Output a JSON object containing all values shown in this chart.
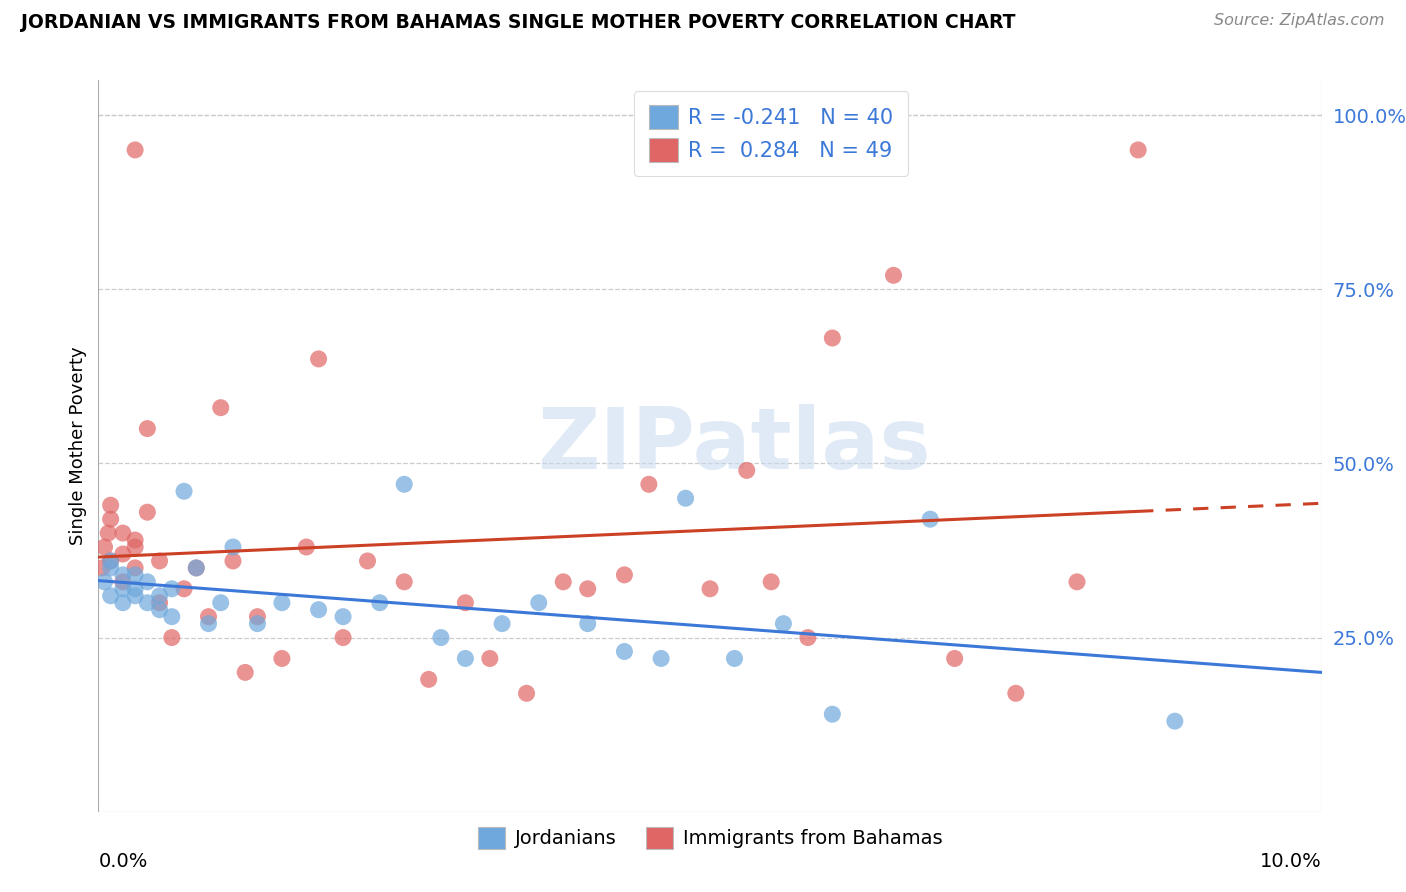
{
  "title": "JORDANIAN VS IMMIGRANTS FROM BAHAMAS SINGLE MOTHER POVERTY CORRELATION CHART",
  "source": "Source: ZipAtlas.com",
  "ylabel": "Single Mother Poverty",
  "legend_label1": "Jordanians",
  "legend_label2": "Immigrants from Bahamas",
  "r1": -0.241,
  "n1": 40,
  "r2": 0.284,
  "n2": 49,
  "color_blue": "#6fa8dc",
  "color_pink": "#e06666",
  "color_line_blue": "#3c78d8",
  "color_line_pink": "#cc4125",
  "watermark": "ZIPatlas",
  "xlim": [
    0.0,
    0.1
  ],
  "ylim": [
    0.0,
    1.05
  ],
  "yticks": [
    0.25,
    0.5,
    0.75,
    1.0
  ],
  "ytick_labels": [
    "25.0%",
    "50.0%",
    "75.0%",
    "100.0%"
  ],
  "blue_x": [
    0.0005,
    0.001,
    0.001,
    0.001,
    0.002,
    0.002,
    0.002,
    0.003,
    0.003,
    0.003,
    0.004,
    0.004,
    0.005,
    0.005,
    0.006,
    0.006,
    0.007,
    0.008,
    0.009,
    0.01,
    0.011,
    0.013,
    0.015,
    0.018,
    0.02,
    0.023,
    0.025,
    0.028,
    0.03,
    0.033,
    0.036,
    0.04,
    0.043,
    0.046,
    0.048,
    0.052,
    0.056,
    0.06,
    0.068,
    0.088
  ],
  "blue_y": [
    0.33,
    0.31,
    0.35,
    0.36,
    0.32,
    0.34,
    0.3,
    0.32,
    0.34,
    0.31,
    0.3,
    0.33,
    0.31,
    0.29,
    0.28,
    0.32,
    0.46,
    0.35,
    0.27,
    0.3,
    0.38,
    0.27,
    0.3,
    0.29,
    0.28,
    0.3,
    0.47,
    0.25,
    0.22,
    0.27,
    0.3,
    0.27,
    0.23,
    0.22,
    0.45,
    0.22,
    0.27,
    0.14,
    0.42,
    0.13
  ],
  "pink_x": [
    0.0003,
    0.0005,
    0.0008,
    0.001,
    0.001,
    0.001,
    0.002,
    0.002,
    0.002,
    0.003,
    0.003,
    0.003,
    0.004,
    0.004,
    0.005,
    0.005,
    0.006,
    0.007,
    0.008,
    0.009,
    0.01,
    0.011,
    0.012,
    0.013,
    0.015,
    0.017,
    0.018,
    0.02,
    0.022,
    0.025,
    0.027,
    0.03,
    0.032,
    0.035,
    0.038,
    0.04,
    0.043,
    0.045,
    0.05,
    0.053,
    0.055,
    0.058,
    0.06,
    0.065,
    0.07,
    0.075,
    0.08,
    0.085,
    0.003
  ],
  "pink_y": [
    0.35,
    0.38,
    0.4,
    0.42,
    0.36,
    0.44,
    0.33,
    0.37,
    0.4,
    0.35,
    0.39,
    0.38,
    0.43,
    0.55,
    0.3,
    0.36,
    0.25,
    0.32,
    0.35,
    0.28,
    0.58,
    0.36,
    0.2,
    0.28,
    0.22,
    0.38,
    0.65,
    0.25,
    0.36,
    0.33,
    0.19,
    0.3,
    0.22,
    0.17,
    0.33,
    0.32,
    0.34,
    0.47,
    0.32,
    0.49,
    0.33,
    0.25,
    0.68,
    0.77,
    0.22,
    0.17,
    0.33,
    0.95,
    0.95
  ]
}
